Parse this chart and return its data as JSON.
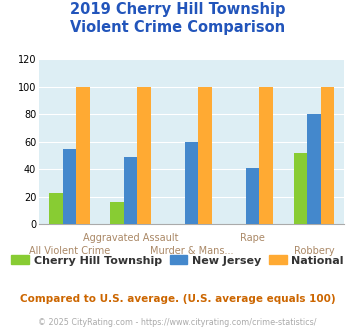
{
  "title": "2019 Cherry Hill Township\nViolent Crime Comparison",
  "categories": [
    "All Violent Crime",
    "Aggravated Assault",
    "Murder & Mans...",
    "Rape",
    "Robbery"
  ],
  "xlabel_row1": [
    "",
    "Aggravated Assault",
    "",
    "Rape",
    ""
  ],
  "xlabel_row2": [
    "All Violent Crime",
    "",
    "Murder & Mans...",
    "",
    "Robbery"
  ],
  "cherry_hill": [
    23,
    16,
    0,
    0,
    52
  ],
  "new_jersey": [
    55,
    49,
    60,
    41,
    80
  ],
  "national": [
    100,
    100,
    100,
    100,
    100
  ],
  "colors": {
    "cherry_hill": "#88cc33",
    "new_jersey": "#4488cc",
    "national": "#ffaa33"
  },
  "ylim": [
    0,
    120
  ],
  "yticks": [
    0,
    20,
    40,
    60,
    80,
    100,
    120
  ],
  "title_color": "#2255bb",
  "axis_bg_color": "#ddeef4",
  "legend_labels": [
    "Cherry Hill Township",
    "New Jersey",
    "National"
  ],
  "comparison_text": "Compared to U.S. average. (U.S. average equals 100)",
  "footer_text": "© 2025 CityRating.com - https://www.cityrating.com/crime-statistics/",
  "comparison_color": "#cc6600",
  "footer_color": "#aaaaaa",
  "bar_width": 0.22,
  "title_fontsize": 10.5,
  "tick_fontsize": 7.0,
  "legend_fontsize": 8.0
}
